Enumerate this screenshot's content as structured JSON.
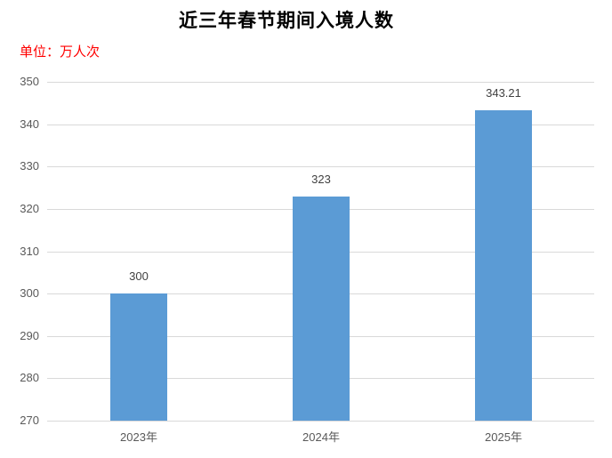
{
  "header": {
    "title": "近三年春节期间入境人数",
    "unit_label": "单位：万人次",
    "unit_color": "#ff0000",
    "title_color": "#000000"
  },
  "chart_data": {
    "type": "bar",
    "title": "近三年春节期间入境人数",
    "unit": "万人次",
    "categories": [
      "2023年",
      "2024年",
      "2025年"
    ],
    "values": [
      300,
      323,
      343.21
    ],
    "value_labels": [
      "300",
      "323",
      "343.21"
    ],
    "xlabel": "",
    "ylabel": "",
    "ylim": [
      270,
      350
    ],
    "ytick_step": 10,
    "ytick_labels": [
      "270",
      "280",
      "290",
      "300",
      "310",
      "320",
      "330",
      "340",
      "350"
    ],
    "grid": true,
    "legend": "none",
    "colors": {
      "bar": "#5b9bd5",
      "gridline": "#d9d9d9",
      "axis_tick_label": "#595959",
      "data_label": "#404040"
    }
  }
}
